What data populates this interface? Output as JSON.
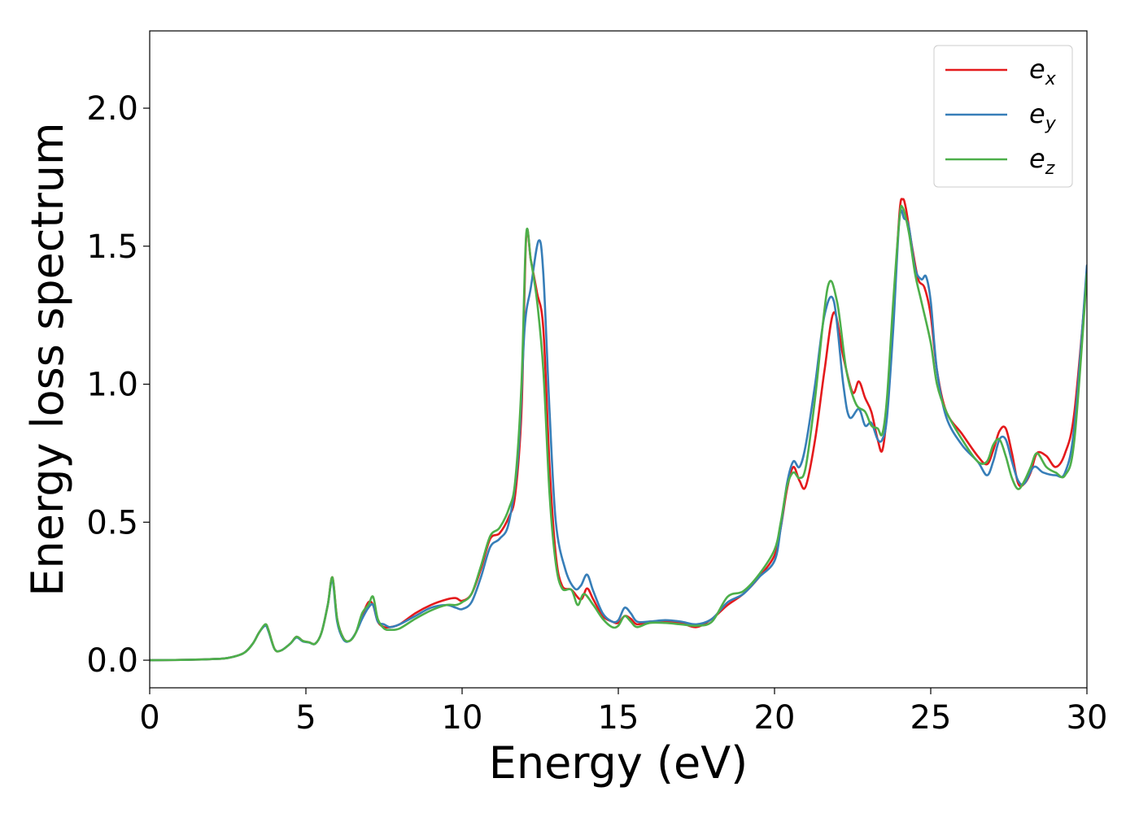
{
  "chart_data": {
    "type": "line",
    "title": "",
    "xlabel": "Energy (eV)",
    "ylabel": "Energy loss spectrum",
    "xlim": [
      0,
      30
    ],
    "ylim": [
      -0.1,
      2.28
    ],
    "x_ticks": [
      0,
      5,
      10,
      15,
      20,
      25,
      30
    ],
    "x_tick_labels": [
      "0",
      "5",
      "10",
      "15",
      "20",
      "25",
      "30"
    ],
    "y_ticks": [
      0.0,
      0.5,
      1.0,
      1.5,
      2.0
    ],
    "y_tick_labels": [
      "0.0",
      "0.5",
      "1.0",
      "1.5",
      "2.0"
    ],
    "grid": false,
    "legend_position": "top-right",
    "series": [
      {
        "name": "e_x",
        "label_main": "e",
        "label_sub": "x",
        "color": "#e41a1c",
        "x": [
          0,
          1,
          2,
          2.5,
          3,
          3.3,
          3.5,
          3.7,
          3.8,
          4.0,
          4.2,
          4.5,
          4.7,
          4.9,
          5.1,
          5.3,
          5.5,
          5.7,
          5.85,
          6.0,
          6.2,
          6.4,
          6.6,
          6.8,
          7.0,
          7.15,
          7.3,
          7.5,
          7.7,
          8.0,
          8.5,
          9.0,
          9.5,
          9.8,
          10.0,
          10.3,
          10.6,
          10.9,
          11.2,
          11.5,
          11.7,
          11.9,
          12.05,
          12.2,
          12.4,
          12.6,
          12.8,
          13.0,
          13.2,
          13.5,
          13.8,
          14.0,
          14.2,
          14.5,
          14.8,
          15.0,
          15.2,
          15.4,
          15.6,
          16.0,
          16.5,
          17.0,
          17.5,
          18.0,
          18.5,
          19.0,
          19.5,
          20.0,
          20.2,
          20.4,
          20.6,
          20.8,
          21.0,
          21.3,
          21.6,
          21.9,
          22.2,
          22.5,
          22.7,
          22.9,
          23.1,
          23.3,
          23.45,
          23.6,
          23.8,
          24.0,
          24.1,
          24.2,
          24.4,
          24.6,
          24.8,
          25.0,
          25.2,
          25.5,
          26.0,
          26.5,
          26.8,
          27.0,
          27.2,
          27.4,
          27.6,
          27.8,
          28.0,
          28.2,
          28.4,
          28.7,
          29.0,
          29.3,
          29.6,
          30.0
        ],
        "values": [
          0.0,
          0.001,
          0.004,
          0.008,
          0.025,
          0.06,
          0.1,
          0.128,
          0.11,
          0.04,
          0.035,
          0.06,
          0.085,
          0.07,
          0.065,
          0.06,
          0.1,
          0.2,
          0.3,
          0.15,
          0.08,
          0.07,
          0.1,
          0.16,
          0.21,
          0.2,
          0.14,
          0.12,
          0.12,
          0.13,
          0.17,
          0.2,
          0.22,
          0.225,
          0.215,
          0.24,
          0.33,
          0.44,
          0.46,
          0.52,
          0.6,
          0.9,
          1.53,
          1.45,
          1.33,
          1.2,
          0.7,
          0.38,
          0.27,
          0.255,
          0.22,
          0.26,
          0.22,
          0.16,
          0.14,
          0.135,
          0.16,
          0.15,
          0.13,
          0.14,
          0.14,
          0.135,
          0.12,
          0.15,
          0.2,
          0.24,
          0.3,
          0.38,
          0.48,
          0.62,
          0.7,
          0.65,
          0.63,
          0.8,
          1.05,
          1.26,
          1.1,
          0.97,
          1.01,
          0.95,
          0.9,
          0.8,
          0.76,
          0.9,
          1.25,
          1.62,
          1.67,
          1.64,
          1.5,
          1.38,
          1.35,
          1.25,
          1.05,
          0.9,
          0.82,
          0.74,
          0.71,
          0.76,
          0.83,
          0.84,
          0.75,
          0.64,
          0.64,
          0.68,
          0.75,
          0.74,
          0.7,
          0.75,
          0.9,
          1.4
        ]
      },
      {
        "name": "e_y",
        "label_main": "e",
        "label_sub": "y",
        "color": "#377eb8",
        "x": [
          0,
          1,
          2,
          2.5,
          3,
          3.3,
          3.5,
          3.7,
          3.8,
          4.0,
          4.2,
          4.5,
          4.7,
          4.9,
          5.1,
          5.3,
          5.5,
          5.7,
          5.85,
          6.0,
          6.2,
          6.4,
          6.6,
          6.8,
          7.0,
          7.15,
          7.3,
          7.5,
          7.7,
          8.0,
          8.5,
          9.0,
          9.5,
          9.8,
          10.0,
          10.3,
          10.6,
          10.9,
          11.2,
          11.5,
          11.8,
          12.0,
          12.2,
          12.45,
          12.6,
          12.8,
          13.0,
          13.3,
          13.6,
          13.8,
          14.0,
          14.2,
          14.5,
          14.8,
          15.0,
          15.2,
          15.4,
          15.6,
          16.0,
          16.5,
          17.0,
          17.5,
          18.0,
          18.5,
          19.0,
          19.5,
          20.0,
          20.2,
          20.4,
          20.6,
          20.8,
          21.0,
          21.3,
          21.6,
          21.9,
          22.2,
          22.4,
          22.7,
          22.9,
          23.1,
          23.3,
          23.45,
          23.6,
          23.8,
          24.0,
          24.15,
          24.3,
          24.5,
          24.7,
          24.85,
          25.0,
          25.2,
          25.5,
          26.0,
          26.5,
          26.8,
          27.0,
          27.2,
          27.4,
          27.6,
          27.8,
          28.0,
          28.3,
          28.6,
          29.0,
          29.3,
          29.6,
          30.0
        ],
        "values": [
          0.0,
          0.001,
          0.004,
          0.008,
          0.025,
          0.06,
          0.1,
          0.125,
          0.105,
          0.04,
          0.035,
          0.06,
          0.082,
          0.068,
          0.064,
          0.06,
          0.1,
          0.2,
          0.29,
          0.14,
          0.075,
          0.07,
          0.1,
          0.15,
          0.19,
          0.2,
          0.14,
          0.13,
          0.12,
          0.13,
          0.16,
          0.19,
          0.2,
          0.19,
          0.185,
          0.21,
          0.3,
          0.41,
          0.44,
          0.5,
          0.75,
          1.2,
          1.35,
          1.52,
          1.4,
          0.9,
          0.5,
          0.33,
          0.26,
          0.27,
          0.31,
          0.25,
          0.17,
          0.14,
          0.145,
          0.19,
          0.17,
          0.14,
          0.14,
          0.145,
          0.14,
          0.13,
          0.15,
          0.21,
          0.24,
          0.3,
          0.36,
          0.48,
          0.64,
          0.72,
          0.7,
          0.78,
          1.0,
          1.25,
          1.3,
          1.0,
          0.88,
          0.91,
          0.85,
          0.86,
          0.8,
          0.8,
          0.88,
          1.2,
          1.6,
          1.6,
          1.57,
          1.42,
          1.38,
          1.39,
          1.3,
          1.05,
          0.88,
          0.78,
          0.72,
          0.67,
          0.72,
          0.8,
          0.8,
          0.72,
          0.65,
          0.64,
          0.7,
          0.68,
          0.67,
          0.68,
          0.85,
          1.43
        ]
      },
      {
        "name": "e_z",
        "label_main": "e",
        "label_sub": "z",
        "color": "#4daf4a",
        "x": [
          0,
          1,
          2,
          2.5,
          3,
          3.3,
          3.5,
          3.7,
          3.8,
          4.0,
          4.2,
          4.5,
          4.7,
          4.9,
          5.1,
          5.3,
          5.5,
          5.7,
          5.85,
          6.0,
          6.2,
          6.4,
          6.6,
          6.8,
          7.0,
          7.15,
          7.3,
          7.5,
          7.7,
          8.0,
          8.5,
          9.0,
          9.5,
          9.8,
          10.0,
          10.3,
          10.6,
          10.9,
          11.2,
          11.5,
          11.7,
          11.9,
          12.05,
          12.2,
          12.4,
          12.6,
          12.8,
          13.0,
          13.2,
          13.5,
          13.7,
          13.9,
          14.2,
          14.5,
          14.8,
          15.0,
          15.2,
          15.4,
          15.6,
          16.0,
          16.5,
          17.0,
          17.5,
          18.0,
          18.5,
          19.0,
          19.5,
          20.0,
          20.2,
          20.4,
          20.6,
          20.8,
          21.0,
          21.3,
          21.7,
          22.0,
          22.3,
          22.6,
          22.9,
          23.1,
          23.3,
          23.45,
          23.6,
          23.8,
          24.0,
          24.1,
          24.3,
          24.5,
          24.7,
          25.0,
          25.2,
          25.5,
          26.0,
          26.5,
          26.8,
          27.0,
          27.2,
          27.4,
          27.6,
          27.8,
          28.0,
          28.2,
          28.4,
          28.7,
          29.0,
          29.3,
          29.6,
          30.0
        ],
        "values": [
          0.0,
          0.001,
          0.004,
          0.008,
          0.025,
          0.06,
          0.1,
          0.13,
          0.11,
          0.04,
          0.035,
          0.06,
          0.085,
          0.07,
          0.065,
          0.06,
          0.1,
          0.2,
          0.3,
          0.15,
          0.08,
          0.07,
          0.1,
          0.17,
          0.2,
          0.23,
          0.15,
          0.115,
          0.11,
          0.115,
          0.15,
          0.18,
          0.2,
          0.2,
          0.21,
          0.24,
          0.34,
          0.45,
          0.48,
          0.55,
          0.65,
          1.0,
          1.54,
          1.45,
          1.3,
          1.05,
          0.6,
          0.35,
          0.26,
          0.255,
          0.2,
          0.24,
          0.2,
          0.15,
          0.12,
          0.125,
          0.16,
          0.14,
          0.12,
          0.135,
          0.135,
          0.13,
          0.125,
          0.14,
          0.23,
          0.25,
          0.31,
          0.4,
          0.5,
          0.63,
          0.68,
          0.66,
          0.7,
          0.95,
          1.35,
          1.3,
          1.05,
          0.93,
          0.9,
          0.85,
          0.84,
          0.82,
          0.95,
          1.3,
          1.6,
          1.64,
          1.55,
          1.4,
          1.3,
          1.15,
          1.0,
          0.9,
          0.8,
          0.72,
          0.72,
          0.78,
          0.8,
          0.74,
          0.66,
          0.62,
          0.65,
          0.7,
          0.75,
          0.7,
          0.68,
          0.67,
          0.8,
          1.4
        ]
      }
    ]
  }
}
